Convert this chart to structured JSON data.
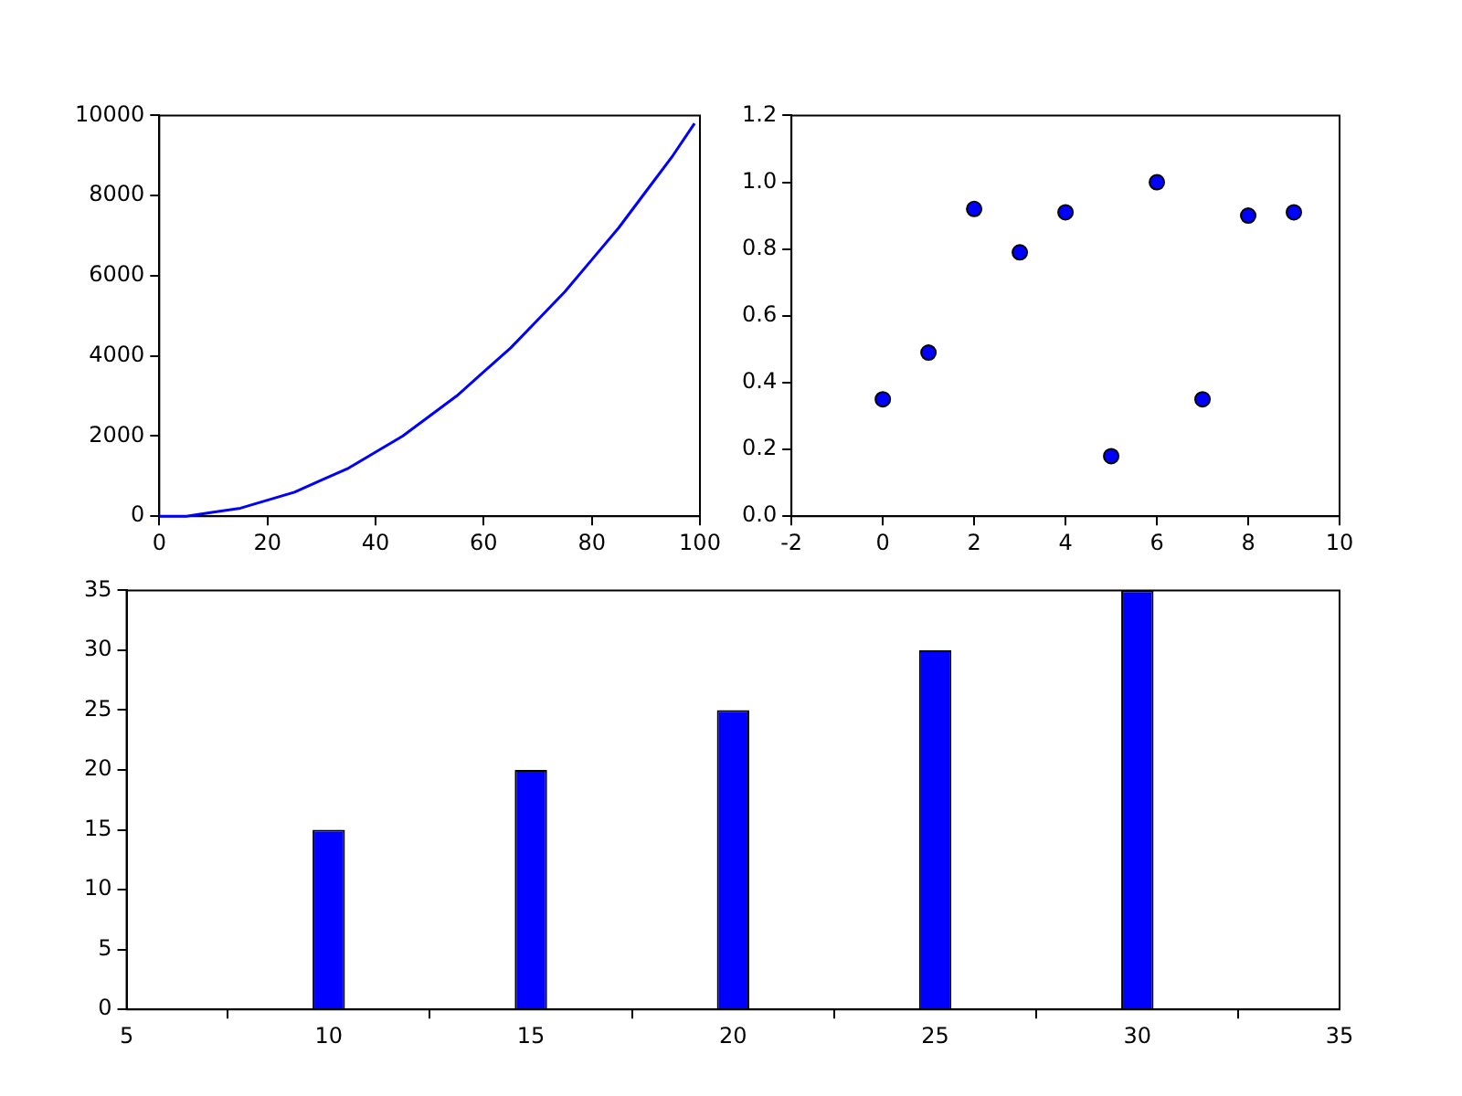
{
  "chart_data": [
    {
      "type": "line",
      "x": [
        0,
        5,
        10,
        15,
        20,
        25,
        30,
        35,
        40,
        45,
        50,
        55,
        60,
        65,
        70,
        75,
        80,
        85,
        90,
        95,
        99
      ],
      "values": [
        0,
        0,
        100,
        200,
        400,
        600,
        900,
        1200,
        1600,
        2000,
        2500,
        3000,
        3600,
        4200,
        4900,
        5600,
        6400,
        7200,
        8100,
        9000,
        9800
      ],
      "color": "#0000ff",
      "xlim": [
        0,
        100
      ],
      "xticks": [
        0,
        20,
        40,
        60,
        80,
        100
      ],
      "ylim": [
        0,
        10000
      ],
      "yticks": [
        0,
        2000,
        4000,
        6000,
        8000,
        10000
      ],
      "grid": false
    },
    {
      "type": "scatter",
      "x": [
        0,
        1,
        2,
        3,
        4,
        5,
        6,
        7,
        8,
        9
      ],
      "values": [
        0.35,
        0.49,
        0.92,
        0.79,
        0.91,
        0.18,
        1.0,
        0.35,
        0.9,
        0.91
      ],
      "color": "#0000ff",
      "marker": "circle",
      "xlim": [
        -2,
        10
      ],
      "xticks": [
        -2,
        0,
        2,
        4,
        6,
        8,
        10
      ],
      "ylim": [
        0,
        1.2
      ],
      "yticks": [
        {
          "value": 0,
          "label": "0.0"
        },
        0.2,
        0.4,
        0.6,
        0.8,
        {
          "value": 1,
          "label": "1.0"
        },
        1.2
      ],
      "grid": false
    },
    {
      "type": "bar",
      "x": [
        10,
        15,
        20,
        25,
        30
      ],
      "values": [
        15,
        20,
        25,
        30,
        35
      ],
      "color": "#0000ff",
      "xlim": [
        5,
        35
      ],
      "xticks": [
        5,
        10,
        15,
        20,
        25,
        30,
        35
      ],
      "ylim": [
        0,
        35
      ],
      "yticks": [
        0,
        5,
        10,
        15,
        20,
        25,
        30,
        35
      ],
      "grid": false
    }
  ]
}
